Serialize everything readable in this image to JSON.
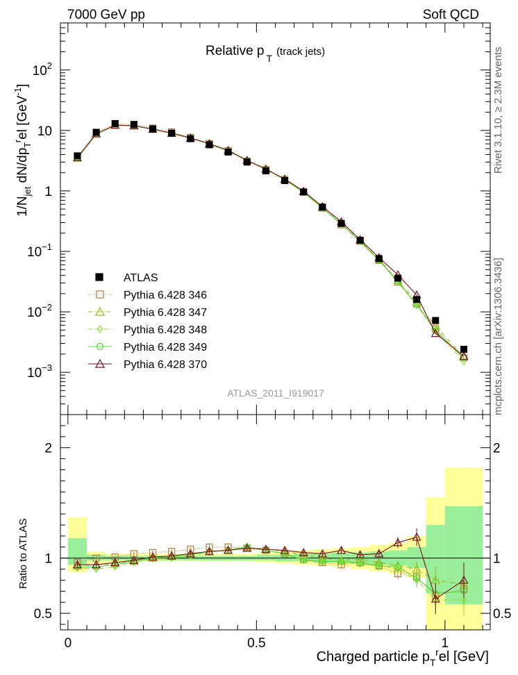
{
  "header": {
    "left": "7000 GeV pp",
    "right": "Soft QCD"
  },
  "side_labels": {
    "rivet": "Rivet 3.1.10, ≥ 2.3M events",
    "mcplots": "mcplots.cern.ch [arXiv:1306.3436]"
  },
  "chart_data": {
    "type": "line",
    "title": "Relative p_T (track jets)",
    "title_main": "Relative p",
    "title_sub": "T",
    "title_suffix": "(track jets)",
    "analysis_label": "ATLAS_2011_I919017",
    "ylabel_main": "1/N_jet dN/dp_T^rel [GeV^-1]",
    "ylabel_ratio": "Ratio to ATLAS",
    "xlabel": "Charged particle p_T^rel [GeV]",
    "xlim": [
      -0.02,
      1.12
    ],
    "ylim_main": [
      0.0002,
      600
    ],
    "ylim_ratio": [
      0.35,
      2.3
    ],
    "y_scale_main": "log",
    "x_ticks": [
      "0",
      "0.5",
      "1"
    ],
    "ratio_ticks": [
      "0.5",
      "1",
      "2"
    ],
    "main_tick_labels": [
      {
        "value": 0.001,
        "base": "10",
        "exp": "−3"
      },
      {
        "value": 0.01,
        "base": "10",
        "exp": "−2"
      },
      {
        "value": 0.1,
        "base": "10",
        "exp": "−1"
      },
      {
        "value": 1,
        "text": "1"
      },
      {
        "value": 10,
        "text": "10"
      },
      {
        "value": 100,
        "base": "10",
        "exp": "2"
      }
    ],
    "legend_position": "lower-left",
    "x": [
      0.025,
      0.075,
      0.125,
      0.175,
      0.225,
      0.275,
      0.325,
      0.375,
      0.425,
      0.475,
      0.525,
      0.575,
      0.625,
      0.675,
      0.725,
      0.775,
      0.825,
      0.875,
      0.925,
      0.975,
      1.05
    ],
    "data": {
      "name": "ATLAS",
      "values": [
        3.8,
        9.3,
        13.0,
        12.5,
        10.6,
        9.0,
        7.3,
        5.8,
        4.4,
        3.0,
        2.15,
        1.48,
        0.96,
        0.54,
        0.29,
        0.153,
        0.076,
        0.036,
        0.016,
        0.0072,
        0.0024
      ]
    },
    "uncertainty_bands": {
      "x_edges": [
        0.0,
        0.05,
        0.1,
        0.15,
        0.2,
        0.25,
        0.3,
        0.35,
        0.4,
        0.45,
        0.5,
        0.55,
        0.6,
        0.65,
        0.7,
        0.75,
        0.8,
        0.85,
        0.9,
        0.95,
        1.0,
        1.1
      ],
      "yellow_low": [
        0.87,
        0.95,
        0.96,
        0.97,
        0.97,
        0.97,
        0.97,
        0.97,
        0.97,
        0.97,
        0.96,
        0.95,
        0.94,
        0.93,
        0.92,
        0.9,
        0.88,
        0.86,
        0.82,
        0.35,
        0.35
      ],
      "yellow_high": [
        1.37,
        1.06,
        1.04,
        1.04,
        1.04,
        1.04,
        1.04,
        1.04,
        1.04,
        1.04,
        1.05,
        1.06,
        1.07,
        1.08,
        1.09,
        1.1,
        1.12,
        1.14,
        1.2,
        1.55,
        1.82
      ],
      "green_low": [
        0.94,
        0.98,
        0.98,
        0.98,
        0.98,
        0.98,
        0.98,
        0.98,
        0.98,
        0.98,
        0.98,
        0.97,
        0.97,
        0.96,
        0.96,
        0.95,
        0.94,
        0.93,
        0.91,
        0.68,
        0.58
      ],
      "green_high": [
        1.18,
        1.03,
        1.02,
        1.02,
        1.02,
        1.02,
        1.02,
        1.02,
        1.02,
        1.02,
        1.03,
        1.03,
        1.04,
        1.04,
        1.05,
        1.05,
        1.06,
        1.07,
        1.1,
        1.3,
        1.47
      ]
    },
    "series": [
      {
        "name": "Pythia 6.428 346",
        "color": "#b07d3a",
        "dash": "1,2",
        "marker": "square",
        "values": [
          3.65,
          9.3,
          12.8,
          12.6,
          10.9,
          9.4,
          7.65,
          6.05,
          4.6,
          3.1,
          2.25,
          1.54,
          0.96,
          0.52,
          0.275,
          0.147,
          0.071,
          0.031,
          0.0135,
          0.0052,
          0.00175
        ],
        "ratio": [
          0.96,
          1.0,
          1.01,
          1.04,
          1.05,
          1.06,
          1.08,
          1.1,
          1.1,
          1.09,
          1.07,
          1.04,
          0.99,
          0.96,
          0.94,
          0.96,
          0.93,
          0.86,
          0.83,
          0.66,
          0.72
        ],
        "ratio_err": [
          0.03,
          0.02,
          0.02,
          0.02,
          0.02,
          0.02,
          0.02,
          0.02,
          0.02,
          0.02,
          0.02,
          0.02,
          0.02,
          0.02,
          0.03,
          0.03,
          0.04,
          0.05,
          0.07,
          0.12,
          0.14
        ]
      },
      {
        "name": "Pythia 6.428 347",
        "color": "#9bb51a",
        "dash": "6,3,1,3",
        "marker": "triangle",
        "values": [
          3.5,
          8.8,
          12.3,
          12.0,
          10.5,
          9.0,
          7.45,
          5.95,
          4.55,
          3.2,
          2.3,
          1.54,
          0.96,
          0.53,
          0.29,
          0.15,
          0.074,
          0.033,
          0.0145,
          0.0058,
          0.0018
        ],
        "ratio": [
          0.93,
          0.94,
          0.95,
          0.97,
          1.0,
          1.02,
          1.04,
          1.06,
          1.07,
          1.1,
          1.08,
          1.06,
          1.03,
          1.0,
          0.98,
          0.99,
          0.96,
          0.93,
          0.9,
          0.8,
          0.76
        ],
        "ratio_err": [
          0.03,
          0.02,
          0.02,
          0.02,
          0.02,
          0.02,
          0.02,
          0.02,
          0.02,
          0.02,
          0.02,
          0.02,
          0.02,
          0.02,
          0.03,
          0.03,
          0.04,
          0.05,
          0.07,
          0.12,
          0.14
        ]
      },
      {
        "name": "Pythia 6.428 348",
        "color": "#9bd93a",
        "dash": "6,2,1,2",
        "marker": "diamond",
        "values": [
          3.45,
          8.6,
          12.1,
          11.9,
          10.4,
          8.9,
          7.4,
          5.95,
          4.55,
          3.2,
          2.3,
          1.54,
          0.95,
          0.52,
          0.285,
          0.147,
          0.072,
          0.031,
          0.0128,
          0.0048,
          0.0015
        ],
        "ratio": [
          0.91,
          0.9,
          0.92,
          0.96,
          0.99,
          1.0,
          1.02,
          1.05,
          1.08,
          1.1,
          1.07,
          1.04,
          0.99,
          0.97,
          0.97,
          0.96,
          0.94,
          0.9,
          0.8,
          0.62,
          0.62
        ],
        "ratio_err": [
          0.03,
          0.02,
          0.02,
          0.02,
          0.02,
          0.02,
          0.02,
          0.02,
          0.02,
          0.02,
          0.02,
          0.02,
          0.02,
          0.02,
          0.03,
          0.03,
          0.04,
          0.05,
          0.07,
          0.12,
          0.14
        ]
      },
      {
        "name": "Pythia 6.428 349",
        "color": "#55d535",
        "dash": "",
        "marker": "circle",
        "values": [
          3.5,
          8.7,
          12.3,
          12.0,
          10.5,
          9.0,
          7.45,
          5.95,
          4.55,
          3.2,
          2.3,
          1.53,
          0.94,
          0.52,
          0.285,
          0.145,
          0.071,
          0.032,
          0.0132,
          0.0049,
          0.0017
        ],
        "ratio": [
          0.92,
          0.92,
          0.94,
          0.97,
          1.0,
          1.01,
          1.03,
          1.06,
          1.07,
          1.1,
          1.07,
          1.04,
          0.98,
          0.97,
          0.97,
          0.95,
          0.93,
          0.92,
          0.82,
          0.68,
          0.7
        ],
        "ratio_err": [
          0.03,
          0.02,
          0.02,
          0.02,
          0.02,
          0.02,
          0.02,
          0.02,
          0.02,
          0.02,
          0.02,
          0.02,
          0.02,
          0.02,
          0.03,
          0.03,
          0.04,
          0.05,
          0.07,
          0.12,
          0.14
        ]
      },
      {
        "name": "Pythia 6.428 370",
        "color": "#7a0f1e",
        "dash": "",
        "marker": "triangle",
        "values": [
          3.55,
          8.8,
          12.2,
          11.95,
          10.5,
          9.0,
          7.5,
          6.05,
          4.7,
          3.2,
          2.3,
          1.57,
          0.99,
          0.55,
          0.31,
          0.156,
          0.079,
          0.041,
          0.019,
          0.0044,
          0.00185
        ],
        "ratio": [
          0.94,
          0.94,
          0.96,
          0.98,
          1.01,
          1.02,
          1.04,
          1.06,
          1.07,
          1.09,
          1.08,
          1.07,
          1.05,
          1.04,
          1.07,
          1.03,
          1.04,
          1.14,
          1.19,
          0.63,
          0.8
        ],
        "ratio_err": [
          0.03,
          0.02,
          0.02,
          0.02,
          0.02,
          0.02,
          0.02,
          0.02,
          0.02,
          0.02,
          0.02,
          0.02,
          0.02,
          0.02,
          0.03,
          0.03,
          0.04,
          0.05,
          0.08,
          0.14,
          0.16
        ]
      }
    ]
  }
}
